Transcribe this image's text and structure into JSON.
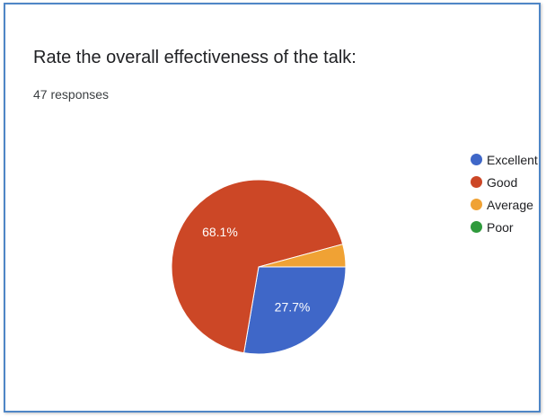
{
  "question": "Rate the overall effectiveness of the talk:",
  "responses": "47 responses",
  "chart_data": {
    "type": "pie",
    "title": "Rate the overall effectiveness of the talk:",
    "categories": [
      "Excellent",
      "Good",
      "Average",
      "Poor"
    ],
    "values": [
      27.7,
      68.1,
      4.2,
      0
    ],
    "counts": [
      13,
      32,
      2,
      0
    ],
    "colors": [
      "#3f67c8",
      "#cc4726",
      "#f0a234",
      "#2f9a3c"
    ],
    "data_labels": [
      "27.7%",
      "68.1%",
      "",
      ""
    ],
    "legend_position": "right"
  }
}
